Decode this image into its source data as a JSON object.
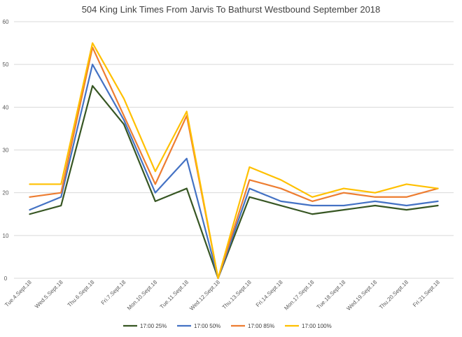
{
  "chart_data": {
    "type": "line",
    "title": "504 King Link Times From Jarvis To Bathurst Westbound September 2018",
    "xlabel": "",
    "ylabel": "",
    "ylim": [
      0,
      60
    ],
    "yticks": [
      0,
      10,
      20,
      30,
      40,
      50,
      60
    ],
    "grid": true,
    "legend_position": "bottom",
    "categories": [
      "Tue.4.Sept.18",
      "Wed.5.Sept.18",
      "Thu.6.Sept.18",
      "Fri.7.Sept.18",
      "Mon.10.Sept.18",
      "Tue.11.Sept.18",
      "Wed.12.Sept.18",
      "Thu.13.Sept.18",
      "Fri.14.Sept.18",
      "Mon.17.Sept.18",
      "Tue.18.Sept.18",
      "Wed.19.Sept.18",
      "Thu.20.Sept.18",
      "Fri.21.Sept.18"
    ],
    "series": [
      {
        "name": "17:00 25%",
        "color": "#375623",
        "values": [
          15,
          17,
          45,
          36,
          18,
          21,
          0,
          19,
          17,
          15,
          16,
          17,
          16,
          17
        ]
      },
      {
        "name": "17:00 50%",
        "color": "#4472c4",
        "values": [
          16,
          19,
          50,
          37,
          20,
          28,
          0,
          21,
          18,
          17,
          17,
          18,
          17,
          18
        ]
      },
      {
        "name": "17:00 85%",
        "color": "#ed7d31",
        "values": [
          19,
          20,
          54,
          38,
          22,
          38,
          0,
          23,
          21,
          18,
          20,
          19,
          19,
          21
        ]
      },
      {
        "name": "17:00 100%",
        "color": "#ffc000",
        "values": [
          22,
          22,
          55,
          42,
          25,
          39,
          0,
          26,
          23,
          19,
          21,
          20,
          22,
          21
        ]
      }
    ]
  }
}
